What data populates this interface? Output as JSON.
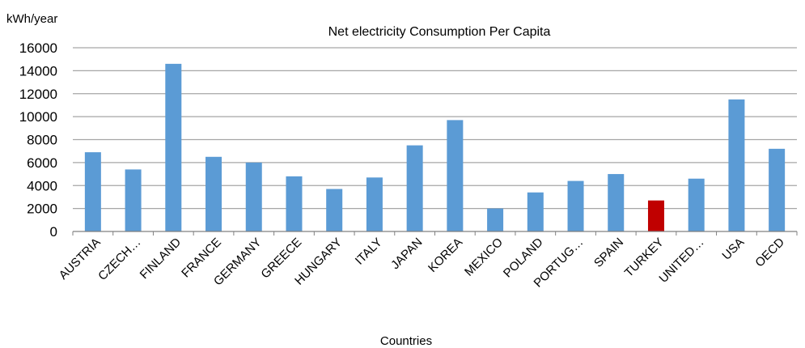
{
  "chart_data": {
    "type": "bar",
    "title": "Net electricity Consumption Per Capita",
    "xlabel": "Countries",
    "ylabel": "kWh/year",
    "ylim": [
      0,
      16000
    ],
    "yticks": [
      0,
      2000,
      4000,
      6000,
      8000,
      10000,
      12000,
      14000,
      16000
    ],
    "grid": true,
    "legend": "none",
    "categories": [
      "AUSTRIA",
      "CZECH…",
      "FINLAND",
      "FRANCE",
      "GERMANY",
      "GREECE",
      "HUNGARY",
      "ITALY",
      "JAPAN",
      "KOREA",
      "MEXICO",
      "POLAND",
      "PORTUG…",
      "SPAIN",
      "TURKEY",
      "UNITED…",
      "USA",
      "OECD"
    ],
    "values": [
      6900,
      5400,
      14600,
      6500,
      6000,
      4800,
      3700,
      4700,
      7500,
      9700,
      2000,
      3400,
      4400,
      5000,
      2700,
      4600,
      11500,
      7200
    ],
    "colors": {
      "default": "#5b9bd5",
      "highlight": "#c00000",
      "grid": "#a6a6a6",
      "axis": "#808080"
    },
    "highlight_category": "TURKEY"
  }
}
